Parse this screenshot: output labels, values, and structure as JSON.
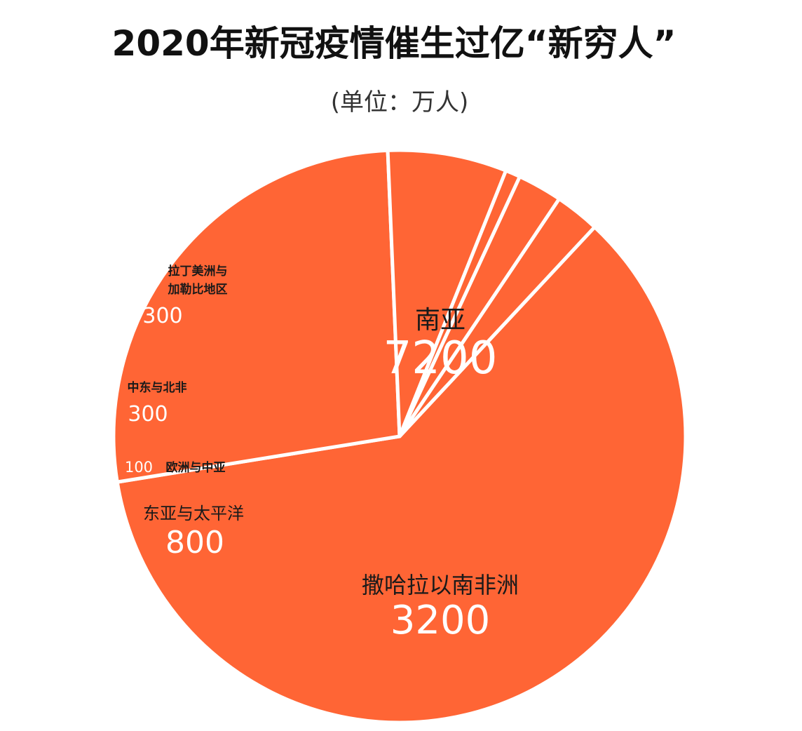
{
  "title": "2020年新冠疫情催生过亿“新穷人”",
  "subtitle": "(单位：万人)",
  "colors": {
    "slice_fill": "#ff6535",
    "slice_stroke": "#ffffff",
    "label_name": "#1a1a1a",
    "label_value": "#ffffff"
  },
  "chart_data": {
    "type": "pie",
    "title": "2020年新冠疫情催生过亿“新穷人”",
    "unit": "万人",
    "slices": [
      {
        "label": "南亚",
        "value": 7200
      },
      {
        "label": "撒哈拉以南非洲",
        "value": 3200
      },
      {
        "label": "东亚与太平洋",
        "value": 800
      },
      {
        "label": "欧洲与中亚",
        "value": 100
      },
      {
        "label": "中东与北非",
        "value": 300
      },
      {
        "label": "拉丁美洲与加勒比地区",
        "value": 300
      }
    ],
    "values_text": [
      "7200",
      "3200",
      "800",
      "100",
      "300",
      "300"
    ],
    "label_lines": {
      "latin_america": [
        "拉丁美洲与",
        "加勒比地区"
      ]
    }
  }
}
